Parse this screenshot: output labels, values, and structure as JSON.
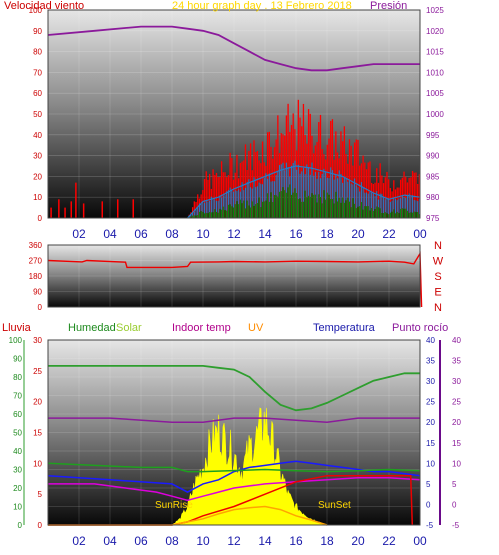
{
  "header": {
    "wind_label": "Velocidad viento",
    "graph_title": "24 hour graph day . 13 Febrero 2018",
    "pressure_label": "Presión"
  },
  "legend": {
    "lluvia": "Lluvia",
    "humedad": "Humedad",
    "solar": "Solar",
    "indoor_temp": "Indoor temp",
    "uv": "UV",
    "temperatura": "Temperatura",
    "punto_rocio": "Punto rocío"
  },
  "annotations": {
    "sunrise": "SunRise",
    "sunset": "SunSet"
  },
  "colors": {
    "wind_gust": "#ff0000",
    "wind_avg": "#1e7fcc",
    "wind_low": "#008800",
    "pressure": "#8b1a9b",
    "direction": "#ee0000",
    "humidity": "#2e9e2e",
    "dewpoint": "#8b1a9b",
    "temperature": "#1a1aff",
    "indoor_temp": "#dd00dd",
    "solar": "#ffff00",
    "uv": "#ffa500",
    "rain": "#ee0000",
    "green_line": "#1ea01e"
  },
  "chart_data": [
    {
      "type": "area",
      "id": "wind_pressure",
      "x_ticks": [
        "02",
        "04",
        "06",
        "08",
        "10",
        "12",
        "14",
        "16",
        "18",
        "20",
        "22",
        "00"
      ],
      "ylim_left": [
        0,
        100
      ],
      "y_ticks_left": [
        "0",
        "10",
        "20",
        "30",
        "40",
        "50",
        "60",
        "70",
        "80",
        "90",
        "100"
      ],
      "ylim_right": [
        975,
        1025
      ],
      "y_ticks_right": [
        "975",
        "980",
        "985",
        "990",
        "995",
        "1000",
        "1005",
        "1010",
        "1015",
        "1020",
        "1025"
      ],
      "pressure": {
        "x": [
          0,
          3,
          6,
          8,
          9,
          10,
          11,
          12,
          13,
          14,
          15,
          16,
          17,
          18,
          19,
          20,
          21,
          22,
          23,
          24
        ],
        "y": [
          1019,
          1020,
          1021,
          1021,
          1020.5,
          1020,
          1019,
          1017,
          1015,
          1013,
          1012,
          1011,
          1010.5,
          1010.5,
          1011,
          1011.5,
          1012,
          1012,
          1012,
          1012
        ]
      },
      "gust_envelope": {
        "x": [
          9,
          10,
          11,
          12,
          13,
          14,
          15,
          16,
          17,
          18,
          19,
          20,
          21,
          22,
          23,
          24
        ],
        "y": [
          0,
          18,
          22,
          28,
          32,
          38,
          44,
          48,
          45,
          42,
          38,
          33,
          25,
          18,
          22,
          20
        ]
      },
      "avg_envelope": {
        "x": [
          9,
          10,
          11,
          12,
          13,
          14,
          15,
          16,
          17,
          18,
          19,
          20,
          21,
          22,
          23,
          24
        ],
        "y": [
          0,
          8,
          10,
          14,
          17,
          20,
          23,
          25,
          24,
          22,
          20,
          16,
          12,
          9,
          11,
          10
        ]
      },
      "low_envelope": {
        "x": [
          9,
          10,
          11,
          12,
          13,
          14,
          15,
          16,
          17,
          18,
          19,
          20,
          21,
          22,
          23,
          24
        ],
        "y": [
          0,
          3,
          4,
          6,
          8,
          9,
          12,
          13,
          12,
          11,
          9,
          7,
          5,
          3,
          4,
          3
        ]
      },
      "early_gusts": {
        "x": [
          0.2,
          0.7,
          1.1,
          1.5,
          1.8,
          2.3,
          3.5,
          4.5,
          5.5
        ],
        "y": [
          5,
          9,
          5,
          8,
          17,
          7,
          8,
          9,
          9
        ]
      }
    },
    {
      "type": "line",
      "id": "wind_direction",
      "ylim": [
        0,
        360
      ],
      "y_ticks": [
        "0",
        "90",
        "180",
        "270",
        "360"
      ],
      "y_ticks_minor": [
        "0",
        "90",
        "180",
        "270",
        "360"
      ],
      "compass": [
        "N",
        "W",
        "S",
        "E",
        "N"
      ],
      "x": [
        0,
        2.2,
        2.5,
        5,
        5.1,
        8,
        9,
        9.2,
        11,
        12,
        14,
        16,
        18,
        20,
        22,
        23,
        23.6,
        24,
        24.1
      ],
      "y": [
        270,
        262,
        270,
        260,
        230,
        230,
        235,
        260,
        262,
        264,
        262,
        266,
        264,
        262,
        266,
        260,
        250,
        310,
        0
      ]
    },
    {
      "type": "line",
      "id": "weather_multi",
      "x_ticks": [
        "02",
        "04",
        "06",
        "08",
        "10",
        "12",
        "14",
        "16",
        "18",
        "20",
        "22",
        "00"
      ],
      "y_ticks_lluvia": [
        "0",
        "10",
        "20",
        "30",
        "40",
        "50",
        "60",
        "70",
        "80",
        "90",
        "100"
      ],
      "y_ticks_solar": [
        "0",
        "5",
        "10",
        "15",
        "20",
        "25",
        "30"
      ],
      "y_ticks_temp": [
        "-5",
        "0",
        "5",
        "10",
        "15",
        "20",
        "25",
        "30",
        "35",
        "40"
      ],
      "ylim_temp": [
        -5,
        40
      ],
      "ylim_pct": [
        0,
        100
      ],
      "ylim_solar": [
        0,
        30
      ],
      "series": [
        {
          "name": "Humedad",
          "x": [
            0,
            7,
            9,
            10,
            11,
            12,
            13,
            14,
            15,
            16,
            17,
            18,
            19,
            20,
            21,
            22,
            23,
            24
          ],
          "y": [
            86,
            86,
            86,
            86,
            85,
            84,
            80,
            72,
            65,
            62,
            63,
            66,
            70,
            74,
            78,
            80,
            82,
            82
          ]
        },
        {
          "name": "Punto rocío",
          "x": [
            0,
            4,
            8,
            10,
            12,
            14,
            16,
            18,
            20,
            22,
            24
          ],
          "y": [
            21,
            21,
            20,
            20,
            21,
            21,
            20.5,
            20,
            21,
            21,
            21
          ]
        },
        {
          "name": "Temperatura",
          "x": [
            0,
            4,
            8,
            9,
            10,
            11,
            12,
            13,
            14,
            15,
            16,
            17,
            18,
            19,
            20,
            21,
            22,
            23,
            24
          ],
          "y": [
            7,
            6,
            5,
            3,
            5,
            6,
            8,
            9,
            9.5,
            10,
            10.5,
            10,
            9.5,
            9,
            8.5,
            8,
            8,
            7.5,
            7
          ]
        },
        {
          "name": "Indoor temp",
          "x": [
            0,
            3,
            5,
            7,
            8,
            9,
            10,
            11,
            12,
            13,
            14,
            16,
            18,
            20,
            22,
            24
          ],
          "y": [
            5,
            5,
            4,
            3,
            2,
            1,
            2,
            3,
            4,
            4.5,
            5,
            5.5,
            6,
            6.5,
            6.5,
            6
          ]
        },
        {
          "name": "green_trace",
          "x": [
            0,
            6,
            8,
            9,
            10,
            14,
            16,
            18,
            20,
            22,
            24
          ],
          "y": [
            10,
            9,
            9,
            8,
            8,
            8.5,
            8.2,
            8,
            8.2,
            8.5,
            8.2
          ]
        },
        {
          "name": "Lluvia",
          "x": [
            0,
            8,
            9,
            10,
            12,
            14,
            16,
            18,
            20,
            21,
            22,
            23.4,
            23.5
          ],
          "y": [
            0,
            0,
            0.5,
            1.5,
            3,
            5,
            7,
            8,
            8,
            8,
            8,
            8,
            0
          ]
        },
        {
          "name": "UV",
          "x": [
            0,
            8,
            9,
            10,
            11,
            12,
            13,
            14,
            15,
            16,
            17,
            18
          ],
          "y": [
            0,
            0,
            0.5,
            1,
            1.8,
            2.5,
            2.8,
            3,
            2.5,
            1.5,
            0.8,
            0
          ]
        }
      ],
      "solar": {
        "x": [
          8,
          8.5,
          9,
          9.5,
          10,
          10.5,
          11,
          11.5,
          12,
          12.5,
          13,
          13.5,
          14,
          14.5,
          15,
          15.5,
          16,
          16.5,
          17,
          17.5,
          18
        ],
        "y": [
          0,
          1,
          3,
          7,
          10,
          14,
          16,
          14,
          12,
          9,
          13,
          15,
          18,
          14,
          9,
          5,
          3,
          2,
          1,
          0.5,
          0
        ]
      }
    }
  ]
}
